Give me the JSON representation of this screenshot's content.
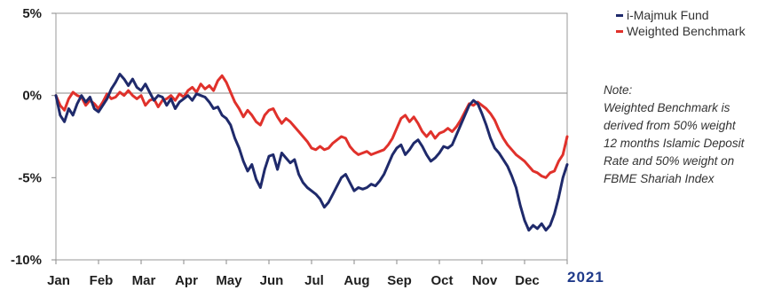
{
  "chart_data": {
    "type": "line",
    "x_ticks": [
      "Jan",
      "Feb",
      "Mar",
      "Apr",
      "May",
      "Jun",
      "Jul",
      "Aug",
      "Sep",
      "Oct",
      "Nov",
      "Dec"
    ],
    "year_label": "2021",
    "y_ticks": [
      {
        "value": 5,
        "label": "5%"
      },
      {
        "value": 0,
        "label": "0%"
      },
      {
        "value": -5,
        "label": "-5%"
      },
      {
        "value": -10,
        "label": "-10%"
      }
    ],
    "ylim": [
      -10,
      5
    ],
    "xlim": [
      0,
      12
    ],
    "grid": "zero-line only",
    "legend_position": "top-right",
    "series": [
      {
        "name": "i-Majmuk Fund",
        "color": "#1f2a6b",
        "points": [
          [
            0.0,
            0.0
          ],
          [
            0.1,
            -1.2
          ],
          [
            0.2,
            -1.6
          ],
          [
            0.3,
            -0.8
          ],
          [
            0.4,
            -1.2
          ],
          [
            0.5,
            -0.5
          ],
          [
            0.6,
            0.0
          ],
          [
            0.7,
            -0.4
          ],
          [
            0.8,
            -0.1
          ],
          [
            0.9,
            -0.8
          ],
          [
            1.0,
            -1.0
          ],
          [
            1.1,
            -0.6
          ],
          [
            1.2,
            -0.2
          ],
          [
            1.3,
            0.4
          ],
          [
            1.4,
            0.8
          ],
          [
            1.5,
            1.3
          ],
          [
            1.6,
            1.0
          ],
          [
            1.7,
            0.6
          ],
          [
            1.8,
            1.0
          ],
          [
            1.9,
            0.5
          ],
          [
            2.0,
            0.3
          ],
          [
            2.1,
            0.7
          ],
          [
            2.2,
            0.2
          ],
          [
            2.3,
            -0.3
          ],
          [
            2.4,
            0.0
          ],
          [
            2.5,
            -0.1
          ],
          [
            2.6,
            -0.6
          ],
          [
            2.7,
            -0.2
          ],
          [
            2.8,
            -0.8
          ],
          [
            2.9,
            -0.4
          ],
          [
            3.0,
            -0.2
          ],
          [
            3.1,
            0.0
          ],
          [
            3.2,
            -0.3
          ],
          [
            3.3,
            0.1
          ],
          [
            3.4,
            0.0
          ],
          [
            3.5,
            -0.1
          ],
          [
            3.6,
            -0.4
          ],
          [
            3.7,
            -0.8
          ],
          [
            3.8,
            -0.7
          ],
          [
            3.9,
            -1.2
          ],
          [
            4.0,
            -1.4
          ],
          [
            4.1,
            -1.8
          ],
          [
            4.2,
            -2.6
          ],
          [
            4.3,
            -3.2
          ],
          [
            4.4,
            -4.0
          ],
          [
            4.5,
            -4.6
          ],
          [
            4.6,
            -4.2
          ],
          [
            4.7,
            -5.1
          ],
          [
            4.8,
            -5.6
          ],
          [
            4.9,
            -4.5
          ],
          [
            5.0,
            -3.7
          ],
          [
            5.1,
            -3.6
          ],
          [
            5.2,
            -4.5
          ],
          [
            5.3,
            -3.5
          ],
          [
            5.4,
            -3.8
          ],
          [
            5.5,
            -4.1
          ],
          [
            5.6,
            -3.9
          ],
          [
            5.7,
            -4.8
          ],
          [
            5.8,
            -5.3
          ],
          [
            5.9,
            -5.6
          ],
          [
            6.0,
            -5.8
          ],
          [
            6.1,
            -6.0
          ],
          [
            6.2,
            -6.3
          ],
          [
            6.3,
            -6.8
          ],
          [
            6.4,
            -6.5
          ],
          [
            6.5,
            -6.0
          ],
          [
            6.6,
            -5.5
          ],
          [
            6.7,
            -5.0
          ],
          [
            6.8,
            -4.8
          ],
          [
            6.9,
            -5.3
          ],
          [
            7.0,
            -5.8
          ],
          [
            7.1,
            -5.6
          ],
          [
            7.2,
            -5.7
          ],
          [
            7.3,
            -5.6
          ],
          [
            7.4,
            -5.4
          ],
          [
            7.5,
            -5.5
          ],
          [
            7.6,
            -5.2
          ],
          [
            7.7,
            -4.8
          ],
          [
            7.8,
            -4.2
          ],
          [
            7.9,
            -3.6
          ],
          [
            8.0,
            -3.2
          ],
          [
            8.1,
            -3.0
          ],
          [
            8.2,
            -3.6
          ],
          [
            8.3,
            -3.3
          ],
          [
            8.4,
            -2.9
          ],
          [
            8.5,
            -2.7
          ],
          [
            8.6,
            -3.1
          ],
          [
            8.7,
            -3.6
          ],
          [
            8.8,
            -4.0
          ],
          [
            8.9,
            -3.8
          ],
          [
            9.0,
            -3.5
          ],
          [
            9.1,
            -3.1
          ],
          [
            9.2,
            -3.2
          ],
          [
            9.3,
            -3.0
          ],
          [
            9.4,
            -2.4
          ],
          [
            9.5,
            -1.8
          ],
          [
            9.6,
            -1.2
          ],
          [
            9.7,
            -0.6
          ],
          [
            9.8,
            -0.3
          ],
          [
            9.9,
            -0.5
          ],
          [
            10.0,
            -1.1
          ],
          [
            10.1,
            -1.8
          ],
          [
            10.2,
            -2.6
          ],
          [
            10.3,
            -3.2
          ],
          [
            10.4,
            -3.5
          ],
          [
            10.5,
            -3.9
          ],
          [
            10.6,
            -4.3
          ],
          [
            10.7,
            -4.9
          ],
          [
            10.8,
            -5.6
          ],
          [
            10.9,
            -6.7
          ],
          [
            11.0,
            -7.6
          ],
          [
            11.1,
            -8.2
          ],
          [
            11.2,
            -7.9
          ],
          [
            11.3,
            -8.1
          ],
          [
            11.4,
            -7.8
          ],
          [
            11.5,
            -8.2
          ],
          [
            11.6,
            -7.9
          ],
          [
            11.7,
            -7.2
          ],
          [
            11.8,
            -6.2
          ],
          [
            11.9,
            -5.0
          ],
          [
            12.0,
            -4.2
          ]
        ]
      },
      {
        "name": "Weighted Benchmark",
        "color": "#e0312b",
        "points": [
          [
            0.0,
            0.0
          ],
          [
            0.1,
            -0.6
          ],
          [
            0.2,
            -0.9
          ],
          [
            0.3,
            -0.2
          ],
          [
            0.4,
            0.2
          ],
          [
            0.5,
            0.0
          ],
          [
            0.6,
            -0.1
          ],
          [
            0.7,
            -0.6
          ],
          [
            0.8,
            -0.3
          ],
          [
            0.9,
            -0.5
          ],
          [
            1.0,
            -0.8
          ],
          [
            1.1,
            -0.4
          ],
          [
            1.2,
            0.1
          ],
          [
            1.3,
            -0.2
          ],
          [
            1.4,
            -0.1
          ],
          [
            1.5,
            0.2
          ],
          [
            1.6,
            0.0
          ],
          [
            1.7,
            0.3
          ],
          [
            1.8,
            0.0
          ],
          [
            1.9,
            -0.2
          ],
          [
            2.0,
            0.0
          ],
          [
            2.1,
            -0.6
          ],
          [
            2.2,
            -0.3
          ],
          [
            2.3,
            -0.2
          ],
          [
            2.4,
            -0.7
          ],
          [
            2.5,
            -0.3
          ],
          [
            2.6,
            -0.2
          ],
          [
            2.7,
            0.0
          ],
          [
            2.8,
            -0.3
          ],
          [
            2.9,
            0.1
          ],
          [
            3.0,
            -0.1
          ],
          [
            3.1,
            0.3
          ],
          [
            3.2,
            0.5
          ],
          [
            3.3,
            0.2
          ],
          [
            3.4,
            0.7
          ],
          [
            3.5,
            0.4
          ],
          [
            3.6,
            0.6
          ],
          [
            3.7,
            0.3
          ],
          [
            3.8,
            0.9
          ],
          [
            3.9,
            1.2
          ],
          [
            4.0,
            0.8
          ],
          [
            4.1,
            0.2
          ],
          [
            4.2,
            -0.4
          ],
          [
            4.3,
            -0.8
          ],
          [
            4.4,
            -1.3
          ],
          [
            4.5,
            -0.9
          ],
          [
            4.6,
            -1.2
          ],
          [
            4.7,
            -1.6
          ],
          [
            4.8,
            -1.8
          ],
          [
            4.9,
            -1.2
          ],
          [
            5.0,
            -0.9
          ],
          [
            5.1,
            -0.8
          ],
          [
            5.2,
            -1.3
          ],
          [
            5.3,
            -1.7
          ],
          [
            5.4,
            -1.4
          ],
          [
            5.5,
            -1.6
          ],
          [
            5.6,
            -1.9
          ],
          [
            5.7,
            -2.2
          ],
          [
            5.8,
            -2.5
          ],
          [
            5.9,
            -2.8
          ],
          [
            6.0,
            -3.2
          ],
          [
            6.1,
            -3.3
          ],
          [
            6.2,
            -3.1
          ],
          [
            6.3,
            -3.3
          ],
          [
            6.4,
            -3.2
          ],
          [
            6.5,
            -2.9
          ],
          [
            6.6,
            -2.7
          ],
          [
            6.7,
            -2.5
          ],
          [
            6.8,
            -2.6
          ],
          [
            6.9,
            -3.1
          ],
          [
            7.0,
            -3.4
          ],
          [
            7.1,
            -3.6
          ],
          [
            7.2,
            -3.5
          ],
          [
            7.3,
            -3.4
          ],
          [
            7.4,
            -3.6
          ],
          [
            7.5,
            -3.5
          ],
          [
            7.6,
            -3.4
          ],
          [
            7.7,
            -3.3
          ],
          [
            7.8,
            -3.0
          ],
          [
            7.9,
            -2.6
          ],
          [
            8.0,
            -2.0
          ],
          [
            8.1,
            -1.4
          ],
          [
            8.2,
            -1.2
          ],
          [
            8.3,
            -1.6
          ],
          [
            8.4,
            -1.3
          ],
          [
            8.5,
            -1.7
          ],
          [
            8.6,
            -2.2
          ],
          [
            8.7,
            -2.5
          ],
          [
            8.8,
            -2.2
          ],
          [
            8.9,
            -2.6
          ],
          [
            9.0,
            -2.3
          ],
          [
            9.1,
            -2.2
          ],
          [
            9.2,
            -2.0
          ],
          [
            9.3,
            -2.2
          ],
          [
            9.4,
            -1.9
          ],
          [
            9.5,
            -1.5
          ],
          [
            9.6,
            -1.0
          ],
          [
            9.7,
            -0.5
          ],
          [
            9.8,
            -0.6
          ],
          [
            9.9,
            -0.4
          ],
          [
            10.0,
            -0.6
          ],
          [
            10.1,
            -0.8
          ],
          [
            10.2,
            -1.1
          ],
          [
            10.3,
            -1.5
          ],
          [
            10.4,
            -2.1
          ],
          [
            10.5,
            -2.6
          ],
          [
            10.6,
            -3.0
          ],
          [
            10.7,
            -3.3
          ],
          [
            10.8,
            -3.6
          ],
          [
            10.9,
            -3.8
          ],
          [
            11.0,
            -4.0
          ],
          [
            11.1,
            -4.3
          ],
          [
            11.2,
            -4.6
          ],
          [
            11.3,
            -4.7
          ],
          [
            11.4,
            -4.9
          ],
          [
            11.5,
            -5.0
          ],
          [
            11.6,
            -4.7
          ],
          [
            11.7,
            -4.6
          ],
          [
            11.8,
            -4.0
          ],
          [
            11.9,
            -3.6
          ],
          [
            12.0,
            -2.5
          ]
        ]
      }
    ]
  },
  "legend": {
    "items": [
      {
        "label": "i-Majmuk Fund",
        "color": "#1f2a6b"
      },
      {
        "label": "Weighted Benchmark",
        "color": "#e0312b"
      }
    ]
  },
  "note": {
    "title": "Note:",
    "lines": [
      "Weighted Benchmark is",
      "derived from 50% weight",
      "12 months Islamic Deposit",
      "Rate and 50% weight on",
      "FBME Shariah Index"
    ]
  }
}
